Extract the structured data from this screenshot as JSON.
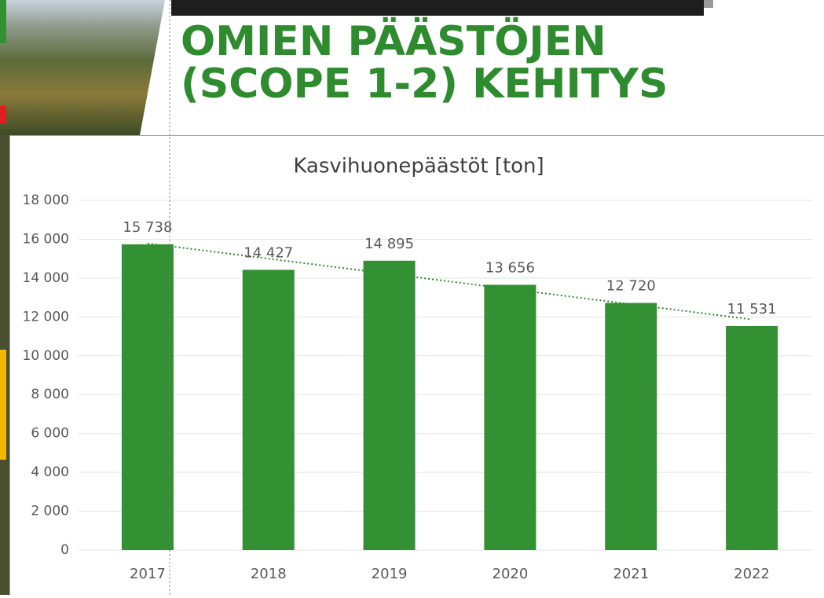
{
  "header": {
    "title_lines": [
      "OMIEN PÄÄSTÖJEN",
      "(SCOPE 1-2) KEHITYS"
    ]
  },
  "chart_data": {
    "type": "bar",
    "title": "Kasvihuonepäästöt [ton]",
    "categories": [
      "2017",
      "2018",
      "2019",
      "2020",
      "2021",
      "2022"
    ],
    "values": [
      15738,
      14427,
      14895,
      13656,
      12720,
      11531
    ],
    "value_labels": [
      "15 738",
      "14 427",
      "14 895",
      "13 656",
      "12 720",
      "11 531"
    ],
    "color": "#339033",
    "ylim": [
      0,
      18000
    ],
    "yticks": [
      0,
      {
        "value": 2000,
        "label": "2 000"
      },
      {
        "value": 4000,
        "label": "4 000"
      },
      {
        "value": 6000,
        "label": "6 000"
      },
      {
        "value": 8000,
        "label": "8 000"
      },
      {
        "value": 10000,
        "label": "10 000"
      },
      {
        "value": 12000,
        "label": "12 000"
      },
      {
        "value": 14000,
        "label": "14 000"
      },
      {
        "value": 16000,
        "label": "16 000"
      },
      {
        "value": 18000,
        "label": "18 000"
      }
    ],
    "grid": true,
    "trendline": true
  }
}
